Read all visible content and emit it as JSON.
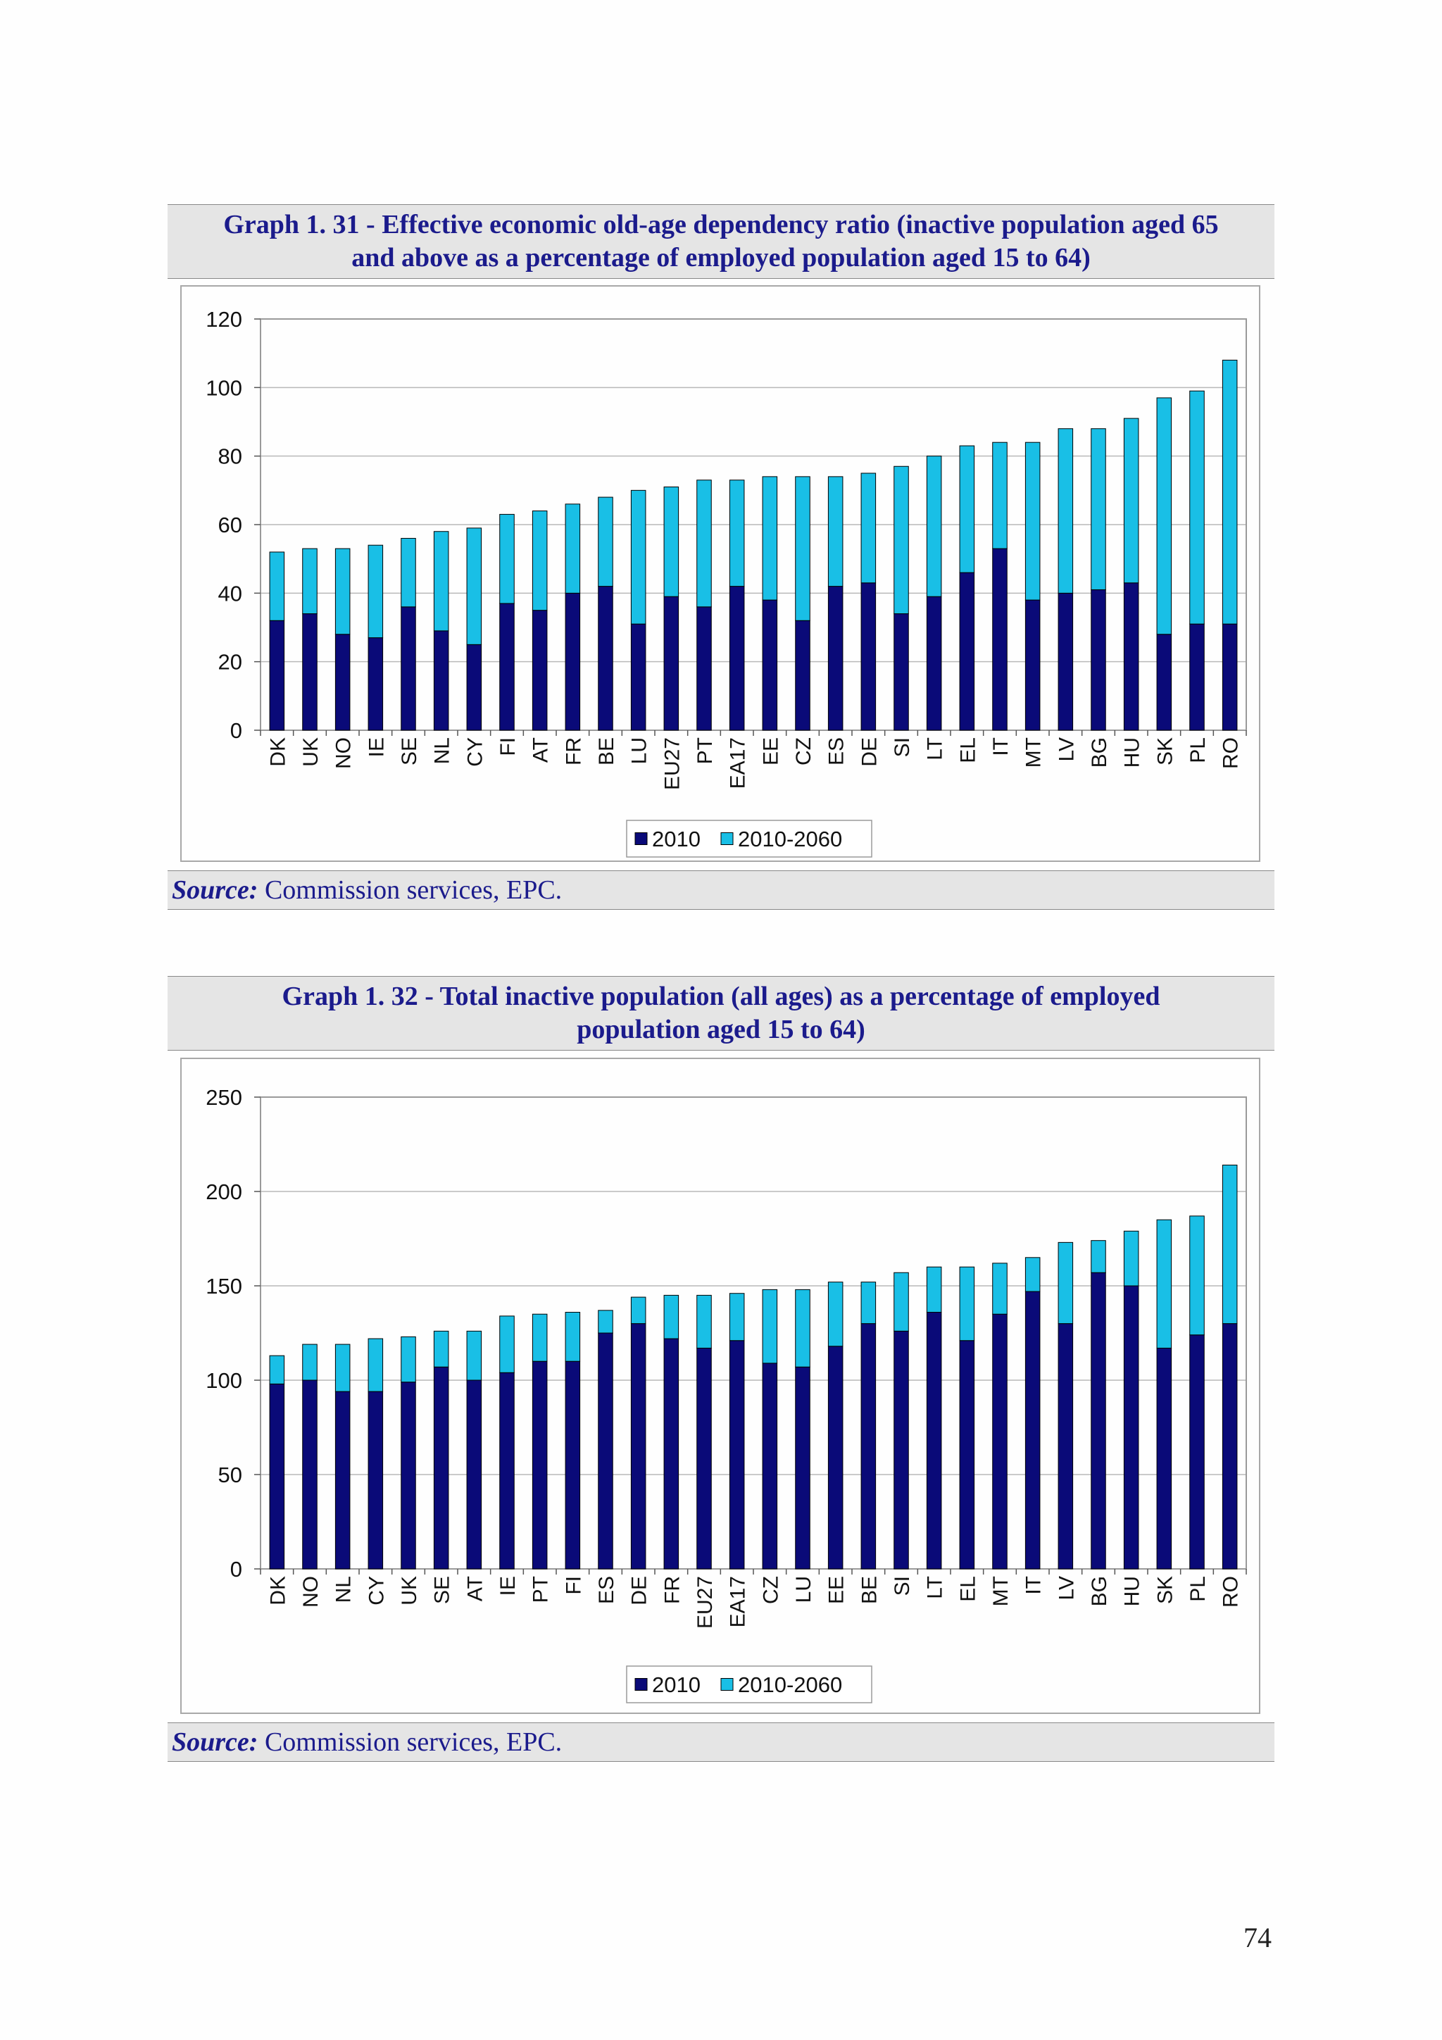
{
  "page": {
    "number": "74"
  },
  "graphs": [
    {
      "title_line1": "Graph 1. 31 - Effective economic old-age dependency ratio (inactive population aged 65",
      "title_line2": "and above as a percentage of employed population aged 15 to 64)",
      "source_label": "Source:",
      "source_text": " Commission services, EPC."
    },
    {
      "title_line1": "Graph 1. 32 - Total inactive population (all ages) as a percentage of employed",
      "title_line2": "population aged 15 to 64)",
      "source_label": "Source:",
      "source_text": " Commission services, EPC."
    }
  ],
  "colors": {
    "s2010": "#0a0a78",
    "s2060": "#19bfe6",
    "gridline": "#b9b9b9",
    "plot_border": "#9a9a9a"
  },
  "chart_data": [
    {
      "type": "bar",
      "stacked": true,
      "categories": [
        "DK",
        "UK",
        "NO",
        "IE",
        "SE",
        "NL",
        "CY",
        "FI",
        "AT",
        "FR",
        "BE",
        "LU",
        "EU27",
        "PT",
        "EA17",
        "EE",
        "CZ",
        "ES",
        "DE",
        "SI",
        "LT",
        "EL",
        "IT",
        "MT",
        "LV",
        "BG",
        "HU",
        "SK",
        "PL",
        "RO"
      ],
      "series": [
        {
          "name": "2010",
          "values": [
            32,
            34,
            28,
            27,
            36,
            29,
            25,
            37,
            35,
            40,
            42,
            31,
            39,
            36,
            42,
            38,
            32,
            42,
            43,
            34,
            39,
            46,
            53,
            38,
            40,
            41,
            43,
            28,
            31,
            31
          ]
        },
        {
          "name": "2010-2060",
          "values": [
            20,
            19,
            25,
            27,
            20,
            29,
            34,
            26,
            29,
            26,
            26,
            39,
            32,
            37,
            31,
            36,
            42,
            32,
            32,
            43,
            41,
            37,
            31,
            46,
            48,
            47,
            48,
            69,
            68,
            77
          ]
        }
      ],
      "ylim": [
        0,
        120
      ],
      "yticks": [
        0,
        20,
        40,
        60,
        80,
        100,
        120
      ],
      "grid": true,
      "legend": "bottom"
    },
    {
      "type": "bar",
      "stacked": true,
      "categories": [
        "DK",
        "NO",
        "NL",
        "CY",
        "UK",
        "SE",
        "AT",
        "IE",
        "PT",
        "FI",
        "ES",
        "DE",
        "FR",
        "EU27",
        "EA17",
        "CZ",
        "LU",
        "EE",
        "BE",
        "SI",
        "LT",
        "EL",
        "MT",
        "IT",
        "LV",
        "BG",
        "HU",
        "SK",
        "PL",
        "RO"
      ],
      "series": [
        {
          "name": "2010",
          "values": [
            98,
            100,
            94,
            94,
            99,
            107,
            100,
            104,
            110,
            110,
            125,
            130,
            122,
            117,
            121,
            109,
            107,
            118,
            130,
            126,
            136,
            121,
            135,
            147,
            130,
            157,
            150,
            117,
            124,
            130
          ]
        },
        {
          "name": "2010-2060",
          "values": [
            15,
            19,
            25,
            28,
            24,
            19,
            26,
            30,
            25,
            26,
            12,
            14,
            23,
            28,
            25,
            39,
            41,
            34,
            22,
            31,
            24,
            39,
            27,
            18,
            43,
            17,
            29,
            68,
            63,
            84
          ]
        }
      ],
      "ylim": [
        0,
        250
      ],
      "yticks": [
        0,
        50,
        100,
        150,
        200,
        250
      ],
      "grid": true,
      "legend": "bottom"
    }
  ]
}
